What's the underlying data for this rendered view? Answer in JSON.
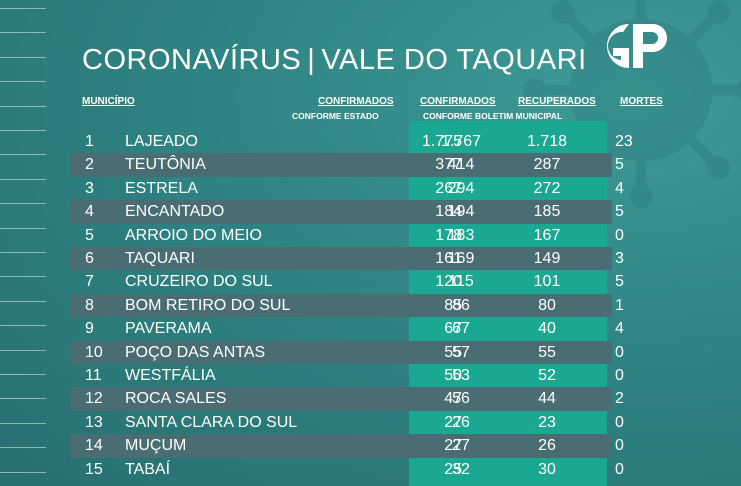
{
  "title": {
    "part1": "CORONAVÍRUS",
    "separator": "|",
    "part2": "VALE DO TAQUARI"
  },
  "logo": {
    "text": "GP"
  },
  "headers": {
    "municipio": "MUNICÍPIO",
    "confirmados_estado": "CONFIRMADOS",
    "conforme_estado": "CONFORME ESTADO",
    "confirmados_boletim": "CONFIRMADOS",
    "recuperados": "RECUPERADOS",
    "conforme_boletim": "CONFORME BOLETIM MUNICIPAL",
    "mortes": "MORTES"
  },
  "colors": {
    "background": "#2f8584",
    "highlight_column": "#1aa893",
    "shaded_row": "#4a6d74"
  },
  "rows": [
    {
      "n": "1",
      "name": "LAJEADO",
      "estado": "1.775",
      "boletim": "1.767",
      "recuperados": "1.718",
      "mortes": "23"
    },
    {
      "n": "2",
      "name": "TEUTÔNIA",
      "estado": "377",
      "boletim": "414",
      "recuperados": "287",
      "mortes": "5"
    },
    {
      "n": "3",
      "name": "ESTRELA",
      "estado": "267",
      "boletim": "294",
      "recuperados": "272",
      "mortes": "4"
    },
    {
      "n": "4",
      "name": "ENCANTADO",
      "estado": "184",
      "boletim": "194",
      "recuperados": "185",
      "mortes": "5"
    },
    {
      "n": "5",
      "name": "ARROIO DO MEIO",
      "estado": "178",
      "boletim": "183",
      "recuperados": "167",
      "mortes": "0"
    },
    {
      "n": "6",
      "name": "TAQUARI",
      "estado": "161",
      "boletim": "169",
      "recuperados": "149",
      "mortes": "3"
    },
    {
      "n": "7",
      "name": "CRUZEIRO DO SUL",
      "estado": "120",
      "boletim": "115",
      "recuperados": "101",
      "mortes": "5"
    },
    {
      "n": "8",
      "name": "BOM RETIRO DO SUL",
      "estado": "85",
      "boletim": "86",
      "recuperados": "80",
      "mortes": "1"
    },
    {
      "n": "9",
      "name": "PAVERAMA",
      "estado": "67",
      "boletim": "67",
      "recuperados": "40",
      "mortes": "4"
    },
    {
      "n": "10",
      "name": "POÇO DAS ANTAS",
      "estado": "55",
      "boletim": "57",
      "recuperados": "55",
      "mortes": "0"
    },
    {
      "n": "11",
      "name": "WESTFÁLIA",
      "estado": "50",
      "boletim": "53",
      "recuperados": "52",
      "mortes": "0"
    },
    {
      "n": "12",
      "name": "ROCA SALES",
      "estado": "47",
      "boletim": "56",
      "recuperados": "44",
      "mortes": "2"
    },
    {
      "n": "13",
      "name": "SANTA CLARA DO SUL",
      "estado": "27",
      "boletim": "26",
      "recuperados": "23",
      "mortes": "0"
    },
    {
      "n": "14",
      "name": "MUÇUM",
      "estado": "27",
      "boletim": "27",
      "recuperados": "26",
      "mortes": "0"
    },
    {
      "n": "15",
      "name": "TABAÍ",
      "estado": "25",
      "boletim": "32",
      "recuperados": "30",
      "mortes": "0"
    }
  ]
}
